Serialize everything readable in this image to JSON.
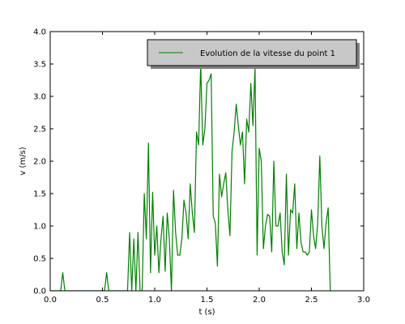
{
  "chart_data": {
    "type": "line",
    "xlabel": "t (s)",
    "ylabel": "v (m/s)",
    "xlim": [
      0.0,
      3.0
    ],
    "ylim": [
      0.0,
      4.0
    ],
    "xticks": [
      "0.0",
      "0.5",
      "1.0",
      "1.5",
      "2.0",
      "2.5",
      "3.0"
    ],
    "yticks": [
      "0.0",
      "0.5",
      "1.0",
      "1.5",
      "2.0",
      "2.5",
      "3.0",
      "3.5",
      "4.0"
    ],
    "grid": false,
    "legend_position": "top-right",
    "series": [
      {
        "name": "Evolution de la vitesse du point 1",
        "color": "#008000",
        "x": [
          0.0,
          0.06,
          0.1,
          0.12,
          0.14,
          0.2,
          0.3,
          0.4,
          0.48,
          0.52,
          0.54,
          0.56,
          0.6,
          0.7,
          0.74,
          0.76,
          0.78,
          0.8,
          0.82,
          0.84,
          0.86,
          0.88,
          0.9,
          0.92,
          0.94,
          0.96,
          0.98,
          1.0,
          1.02,
          1.04,
          1.06,
          1.08,
          1.1,
          1.12,
          1.14,
          1.16,
          1.18,
          1.2,
          1.22,
          1.24,
          1.26,
          1.28,
          1.3,
          1.32,
          1.34,
          1.36,
          1.38,
          1.4,
          1.42,
          1.44,
          1.46,
          1.48,
          1.5,
          1.52,
          1.54,
          1.56,
          1.58,
          1.6,
          1.62,
          1.64,
          1.66,
          1.68,
          1.7,
          1.72,
          1.74,
          1.76,
          1.78,
          1.8,
          1.82,
          1.84,
          1.86,
          1.88,
          1.9,
          1.92,
          1.94,
          1.96,
          1.98,
          2.0,
          2.02,
          2.04,
          2.06,
          2.08,
          2.1,
          2.12,
          2.14,
          2.16,
          2.18,
          2.2,
          2.22,
          2.24,
          2.26,
          2.28,
          2.3,
          2.32,
          2.34,
          2.36,
          2.38,
          2.4,
          2.42,
          2.44,
          2.46,
          2.48,
          2.5,
          2.52,
          2.54,
          2.56,
          2.58,
          2.6,
          2.62,
          2.64,
          2.66,
          2.68,
          2.7
        ],
        "y": [
          0.0,
          0.0,
          0.0,
          0.28,
          0.0,
          0.0,
          0.0,
          0.0,
          0.0,
          0.0,
          0.28,
          0.0,
          0.0,
          0.0,
          0.0,
          0.9,
          0.0,
          0.8,
          0.0,
          0.9,
          0.0,
          0.0,
          1.5,
          0.8,
          2.28,
          0.28,
          1.52,
          0.55,
          1.0,
          0.28,
          0.8,
          1.15,
          0.3,
          1.2,
          0.8,
          0.0,
          1.55,
          0.9,
          0.55,
          0.55,
          0.8,
          1.4,
          1.2,
          0.8,
          1.65,
          1.2,
          0.9,
          2.45,
          2.25,
          3.5,
          2.25,
          2.5,
          3.2,
          3.25,
          3.35,
          1.15,
          1.05,
          0.38,
          1.8,
          1.45,
          1.65,
          1.82,
          1.25,
          0.85,
          2.15,
          2.45,
          2.88,
          2.55,
          2.25,
          2.45,
          1.65,
          2.65,
          2.45,
          3.2,
          2.55,
          3.45,
          0.55,
          2.2,
          2.0,
          0.65,
          1.0,
          1.18,
          1.15,
          0.6,
          2.0,
          1.0,
          1.0,
          1.2,
          0.6,
          0.4,
          1.8,
          0.55,
          1.25,
          1.2,
          1.65,
          0.65,
          1.2,
          0.75,
          0.6,
          0.6,
          0.55,
          0.6,
          1.25,
          0.85,
          0.65,
          1.05,
          2.08,
          1.0,
          0.65,
          1.05,
          1.28,
          0.0,
          0.0
        ]
      }
    ]
  }
}
